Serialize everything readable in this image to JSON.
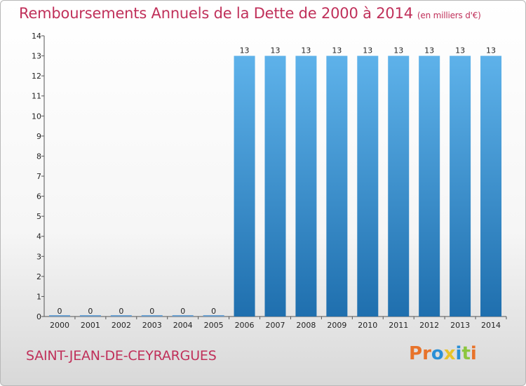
{
  "header": {
    "title": "Remboursements Annuels de la Dette de 2000 à 2014",
    "unit": "(en milliers d'€)"
  },
  "footer": {
    "place": "SAINT-JEAN-DE-CEYRARGUES",
    "logo": "Proxiti",
    "logo_colors": [
      "#e8732a",
      "#e8732a",
      "#2a8fd6",
      "#e8c32a",
      "#2a8fd6",
      "#8cc63e",
      "#e8732a"
    ]
  },
  "colors": {
    "title": "#c0305a",
    "bar_light": "#5aaee8",
    "bar_dark": "#1f6fae",
    "axis": "#444444"
  },
  "chart_data": {
    "type": "bar",
    "title": "Remboursements Annuels de la Dette de 2000 à 2014",
    "xlabel": "",
    "ylabel": "",
    "categories": [
      "2000",
      "2001",
      "2002",
      "2003",
      "2004",
      "2005",
      "2006",
      "2007",
      "2008",
      "2009",
      "2010",
      "2011",
      "2012",
      "2013",
      "2014"
    ],
    "values": [
      0,
      0,
      0,
      0,
      0,
      0,
      13,
      13,
      13,
      13,
      13,
      13,
      13,
      13,
      13
    ],
    "data_labels": [
      "0",
      "0",
      "0",
      "0",
      "0",
      "0",
      "13",
      "13",
      "13",
      "13",
      "13",
      "13",
      "13",
      "13",
      "13"
    ],
    "ylim": [
      0,
      14
    ],
    "yticks": [
      "0",
      "1",
      "2",
      "3",
      "4",
      "5",
      "6",
      "7",
      "8",
      "9",
      "10",
      "11",
      "12",
      "13",
      "14"
    ],
    "grid": false
  }
}
